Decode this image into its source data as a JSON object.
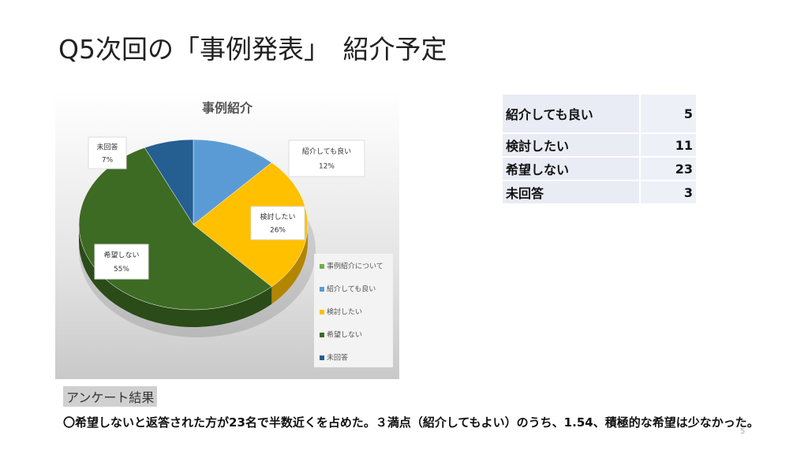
{
  "title": "Q5次回の「事例発表」　紹介予定",
  "chart_data": {
    "type": "pie",
    "title": "事例紹介",
    "legend_title": "事例紹介について",
    "legend_title_color": "#70ad47",
    "categories": [
      "紹介しても良い",
      "検討したい",
      "希望しない",
      "未回答"
    ],
    "values": [
      12,
      26,
      55,
      7
    ],
    "value_labels": [
      "12%",
      "26%",
      "55%",
      "7%"
    ],
    "colors": [
      "#5b9bd5",
      "#ffc000",
      "#3d6b23",
      "#255e91"
    ],
    "legend": "right"
  },
  "table": {
    "rows": [
      [
        "紹介しても良い",
        5
      ],
      [
        "検討したい",
        11
      ],
      [
        "希望しない",
        23
      ],
      [
        "未回答",
        3
      ]
    ]
  },
  "section_label": "アンケート結果",
  "body_text": "〇希望しないと返答された方が23名で半数近くを占めた。３満点（紹介してもよい）のうち、1.54、積極的な希望は少なかった。",
  "page_number": "5"
}
